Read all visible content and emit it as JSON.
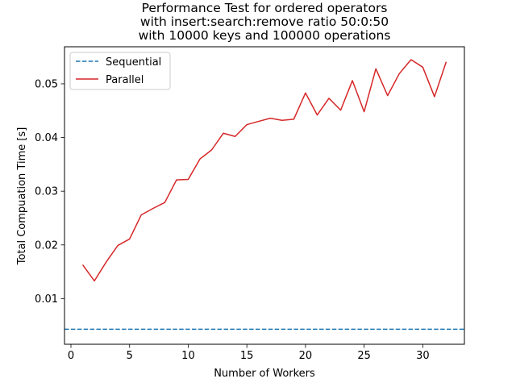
{
  "chart_data": {
    "type": "line",
    "title": [
      "Performance Test for ordered operators",
      "with insert:search:remove ratio 50:0:50",
      "with 10000 keys and 100000 operations"
    ],
    "xlabel": "Number of Workers",
    "ylabel": "Total Compuation Time [s]",
    "xlim": [
      -0.55,
      33.55
    ],
    "ylim": [
      0.0015,
      0.0569
    ],
    "xticks": [
      0,
      5,
      10,
      15,
      20,
      25,
      30
    ],
    "xtick_labels": [
      "0",
      "5",
      "10",
      "15",
      "20",
      "25",
      "30"
    ],
    "yticks": [
      0.01,
      0.02,
      0.03,
      0.04,
      0.05
    ],
    "ytick_labels": [
      "0.01",
      "0.02",
      "0.03",
      "0.04",
      "0.05"
    ],
    "legend_position": "top-left",
    "series": [
      {
        "name": "Sequential",
        "kind": "hline",
        "style": "dashed",
        "color": "#1f77b4",
        "value": 0.0043
      },
      {
        "name": "Parallel",
        "kind": "line",
        "style": "solid",
        "color": "#d62728",
        "x": [
          1,
          2,
          3,
          4,
          5,
          6,
          7,
          8,
          9,
          10,
          11,
          12,
          13,
          14,
          15,
          16,
          17,
          18,
          19,
          20,
          21,
          22,
          23,
          24,
          25,
          26,
          27,
          28,
          29,
          30,
          31,
          32
        ],
        "values": [
          0.0163,
          0.0133,
          0.0168,
          0.0199,
          0.0211,
          0.0256,
          0.0268,
          0.0279,
          0.0321,
          0.0322,
          0.036,
          0.0377,
          0.0408,
          0.0402,
          0.0424,
          0.043,
          0.0436,
          0.0432,
          0.0434,
          0.0483,
          0.0442,
          0.0473,
          0.0451,
          0.0506,
          0.0448,
          0.0528,
          0.0478,
          0.0519,
          0.0545,
          0.0531,
          0.0476,
          0.0541
        ]
      }
    ]
  }
}
